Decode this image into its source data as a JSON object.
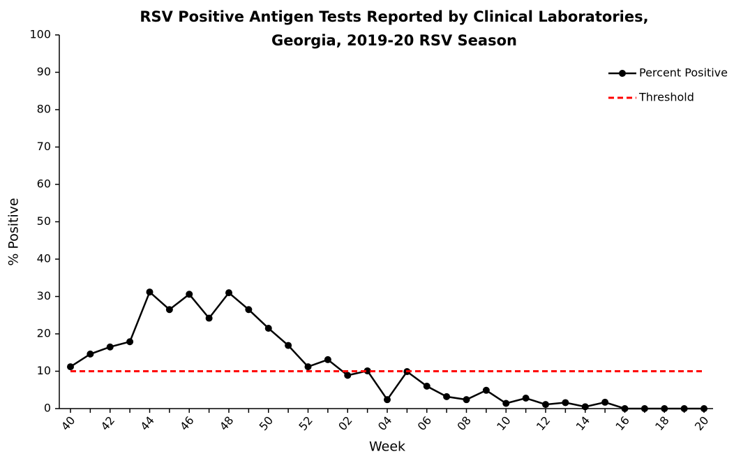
{
  "chart_data": {
    "type": "line",
    "title": [
      "RSV Positive Antigen Tests Reported by Clinical Laboratories,",
      "Georgia, 2019-20 RSV Season"
    ],
    "x_label": "Week",
    "y_label": "% Positive",
    "categories": [
      "40",
      null,
      "42",
      null,
      "44",
      null,
      "46",
      null,
      "48",
      null,
      "50",
      null,
      "52",
      null,
      "02",
      null,
      "04",
      null,
      "06",
      null,
      "08",
      null,
      "10",
      null,
      "12",
      null,
      "14",
      null,
      "16",
      null,
      "18",
      null,
      "20"
    ],
    "series": [
      {
        "name": "Percent Positive",
        "color": "#000000",
        "marker": "circle",
        "dash": false,
        "values": [
          11.2,
          14.6,
          16.5,
          17.9,
          31.2,
          26.5,
          30.6,
          24.2,
          31.0,
          26.5,
          21.5,
          16.9,
          11.2,
          13.1,
          8.9,
          10.1,
          2.4,
          9.9,
          6.0,
          3.2,
          2.4,
          4.9,
          1.4,
          2.8,
          1.1,
          1.6,
          0.5,
          1.7,
          0,
          0,
          0,
          0,
          0
        ]
      },
      {
        "name": "Threshold",
        "color": "#ff0000",
        "marker": null,
        "dash": true,
        "values": [
          10,
          10,
          10,
          10,
          10,
          10,
          10,
          10,
          10,
          10,
          10,
          10,
          10,
          10,
          10,
          10,
          10,
          10,
          10,
          10,
          10,
          10,
          10,
          10,
          10,
          10,
          10,
          10,
          10,
          10,
          10,
          10,
          10
        ]
      }
    ],
    "ylim": [
      0,
      100
    ],
    "yticks": [
      0,
      10,
      20,
      30,
      40,
      50,
      60,
      70,
      80,
      90,
      100
    ],
    "grid": false,
    "legend": "upper right"
  }
}
